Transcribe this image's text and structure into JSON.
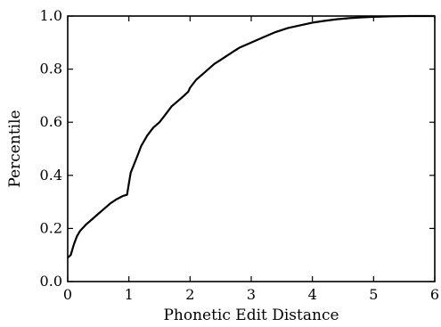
{
  "chart_data": {
    "type": "line",
    "xlabel": "Phonetic Edit Distance",
    "ylabel": "Percentile",
    "xlim": [
      0,
      6
    ],
    "ylim": [
      0.0,
      1.0
    ],
    "x_ticks": [
      0,
      1,
      2,
      3,
      4,
      5,
      6
    ],
    "x_tick_labels": [
      "0",
      "1",
      "2",
      "3",
      "4",
      "5",
      "6"
    ],
    "y_ticks": [
      0.0,
      0.2,
      0.4,
      0.6,
      0.8,
      1.0
    ],
    "y_tick_labels": [
      "0.0",
      "0.2",
      "0.4",
      "0.6",
      "0.8",
      "1.0"
    ],
    "grid": false,
    "series": [
      {
        "color": "#000000",
        "points": [
          [
            0.0,
            0.09
          ],
          [
            0.05,
            0.1
          ],
          [
            0.1,
            0.14
          ],
          [
            0.15,
            0.17
          ],
          [
            0.2,
            0.19
          ],
          [
            0.3,
            0.215
          ],
          [
            0.4,
            0.235
          ],
          [
            0.5,
            0.255
          ],
          [
            0.6,
            0.275
          ],
          [
            0.7,
            0.295
          ],
          [
            0.8,
            0.31
          ],
          [
            0.9,
            0.322
          ],
          [
            0.97,
            0.327
          ],
          [
            1.0,
            0.37
          ],
          [
            1.03,
            0.41
          ],
          [
            1.1,
            0.45
          ],
          [
            1.15,
            0.48
          ],
          [
            1.2,
            0.51
          ],
          [
            1.3,
            0.55
          ],
          [
            1.4,
            0.58
          ],
          [
            1.5,
            0.6
          ],
          [
            1.6,
            0.63
          ],
          [
            1.7,
            0.66
          ],
          [
            1.8,
            0.68
          ],
          [
            1.9,
            0.7
          ],
          [
            1.97,
            0.715
          ],
          [
            2.0,
            0.73
          ],
          [
            2.1,
            0.76
          ],
          [
            2.2,
            0.78
          ],
          [
            2.3,
            0.8
          ],
          [
            2.4,
            0.82
          ],
          [
            2.5,
            0.835
          ],
          [
            2.6,
            0.85
          ],
          [
            2.7,
            0.865
          ],
          [
            2.8,
            0.88
          ],
          [
            2.9,
            0.89
          ],
          [
            3.0,
            0.9
          ],
          [
            3.2,
            0.92
          ],
          [
            3.4,
            0.94
          ],
          [
            3.6,
            0.955
          ],
          [
            3.8,
            0.965
          ],
          [
            4.0,
            0.975
          ],
          [
            4.2,
            0.982
          ],
          [
            4.4,
            0.988
          ],
          [
            4.6,
            0.992
          ],
          [
            4.8,
            0.995
          ],
          [
            5.0,
            0.997
          ],
          [
            5.3,
            0.999
          ],
          [
            5.6,
            1.0
          ],
          [
            6.0,
            1.0
          ]
        ]
      }
    ]
  }
}
